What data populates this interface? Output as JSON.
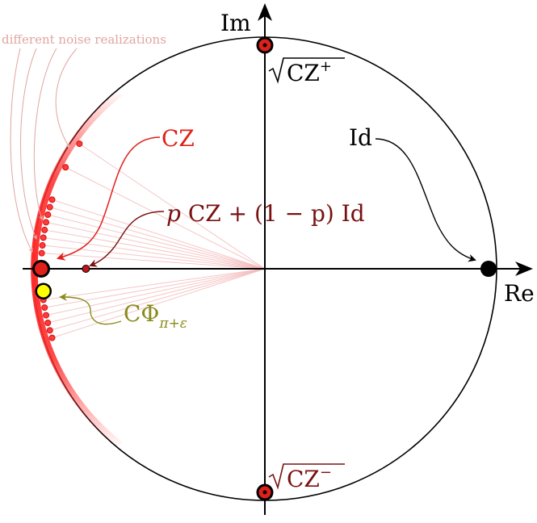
{
  "diagram": {
    "axes": {
      "real_label": "Re",
      "imag_label": "Im"
    },
    "colors": {
      "axis": "#000000",
      "cz": "#e0201a",
      "mixture": "#7a1010",
      "cphi": "#8a8a1a",
      "cphi_fill": "#ffff00",
      "annotation": "#e0a6a0",
      "ray": "#f4b8b8"
    },
    "labels": {
      "noise": "different noise realizations",
      "cz": "CZ",
      "id": "Id",
      "mixture_p": "p",
      "mixture_cz": " CZ + ",
      "mixture_one_minus_p": "(1 − p)",
      "mixture_id": " Id",
      "cphi_main": "CΦ",
      "cphi_sub": "π+ε",
      "sqrt_cz_plus": "CZ",
      "sqrt_cz_plus_sup": "+",
      "sqrt_cz_minus": "CZ",
      "sqrt_cz_minus_sup": "−"
    },
    "points": {
      "cz": {
        "re": -1,
        "im": 0
      },
      "id": {
        "re": 1,
        "im": 0
      },
      "sqrt_cz_plus": {
        "re": 0,
        "im": 1
      },
      "sqrt_cz_minus": {
        "re": 0,
        "im": -1
      },
      "mixture": {
        "re": -0.8,
        "im": 0
      },
      "cphi": {
        "re": -0.99,
        "im": -0.1
      }
    },
    "noise_angles_deg": [
      146,
      153,
      162,
      164,
      166,
      168,
      170,
      172,
      174,
      176,
      188,
      190,
      192,
      194,
      196,
      198
    ]
  }
}
